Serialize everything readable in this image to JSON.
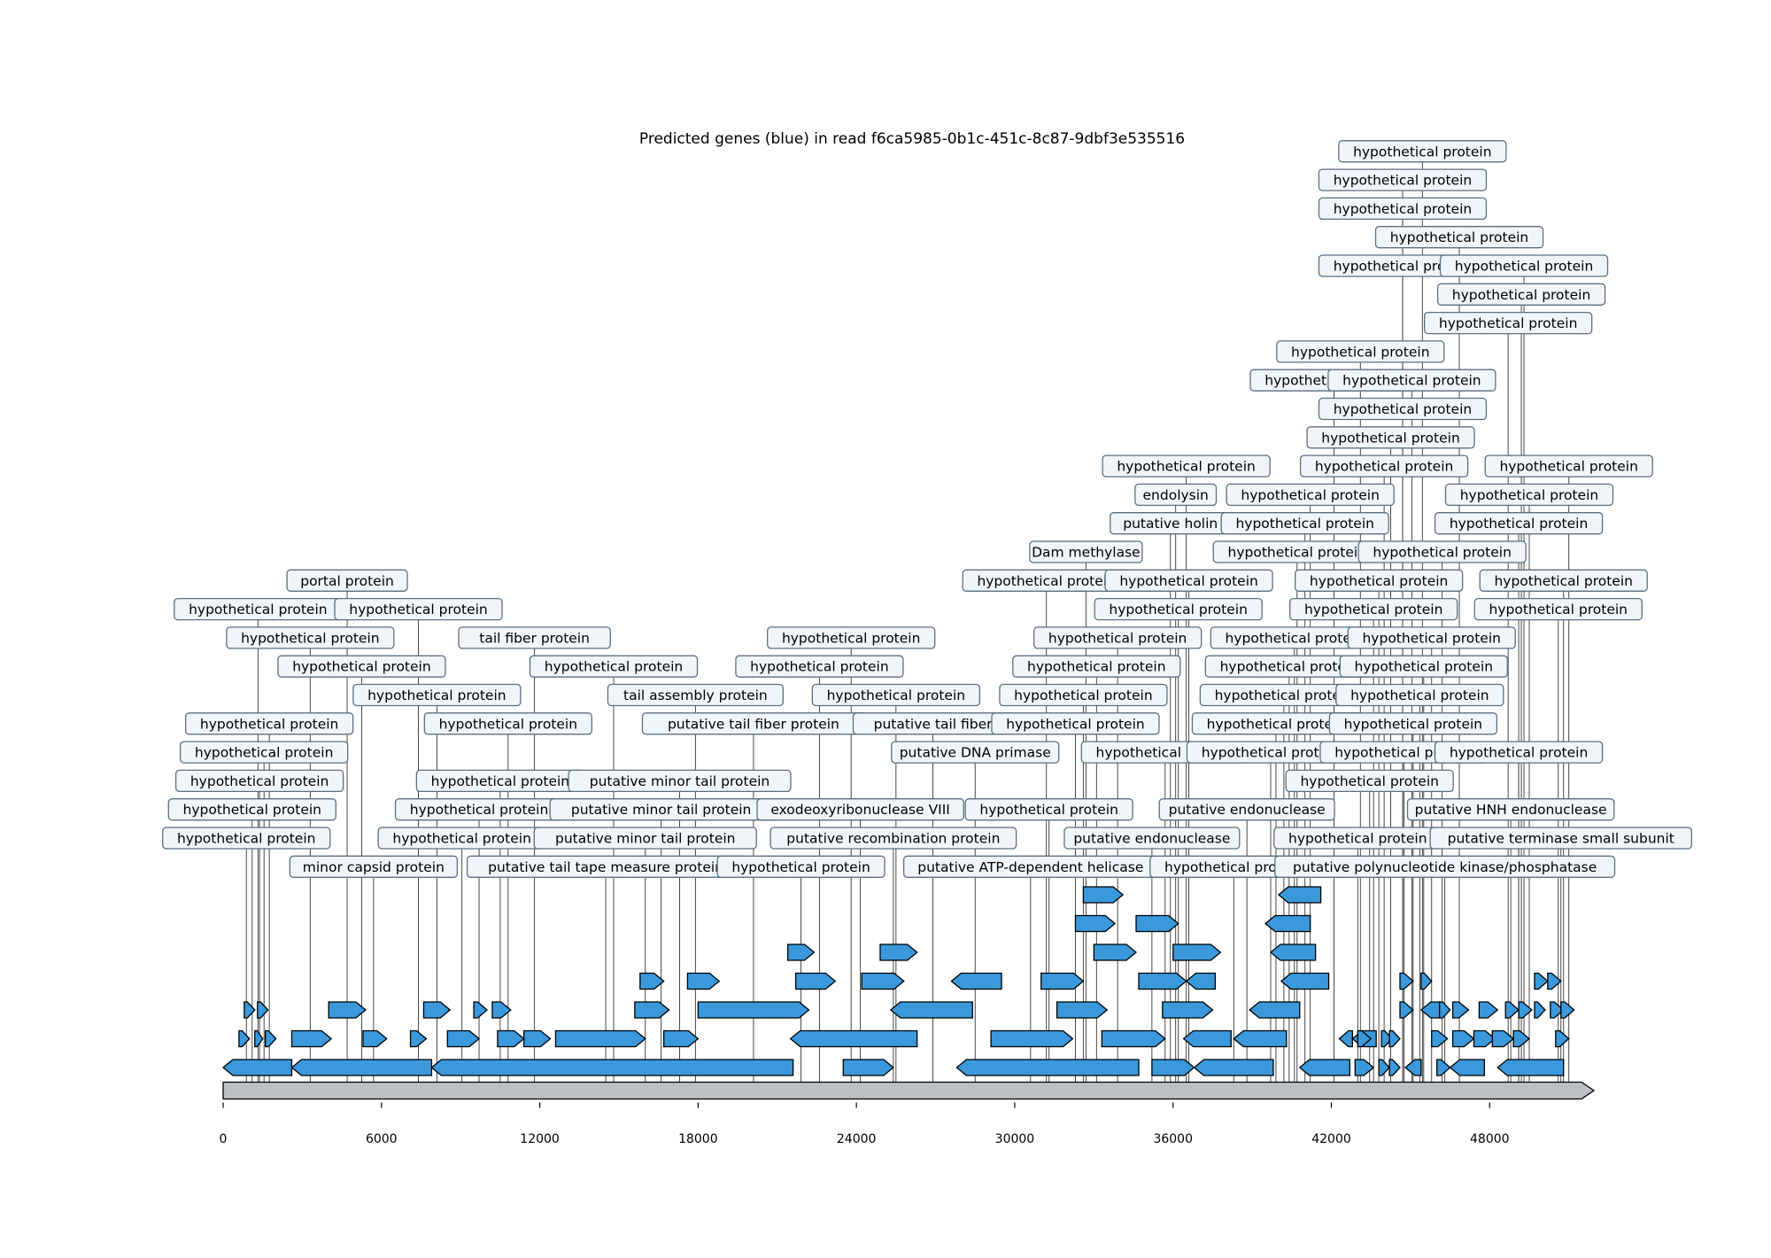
{
  "title": "Predicted genes (blue) in read f6ca5985-0b1c-451c-8c87-9dbf3e535516",
  "chart_data": {
    "type": "gene_map",
    "title": "Predicted genes (blue) in read f6ca5985-0b1c-451c-8c87-9dbf3e535516",
    "xlim": [
      0,
      51950
    ],
    "xticks": [
      0,
      6000,
      12000,
      18000,
      24000,
      30000,
      36000,
      42000,
      48000
    ],
    "tick_labels": [
      "0",
      "6000",
      "12000",
      "18000",
      "24000",
      "30000",
      "36000",
      "42000",
      "48000"
    ],
    "colors": {
      "gene": "#3a98db",
      "genome": "#bdc0c3",
      "label_box": "#f0f5fa"
    },
    "annotations": [
      {
        "label": "hypothetical protein",
        "x": 880,
        "level": 0
      },
      {
        "label": "hypothetical protein",
        "x": 1100,
        "level": 1
      },
      {
        "label": "hypothetical protein",
        "x": 1380,
        "level": 2
      },
      {
        "label": "hypothetical protein",
        "x": 1550,
        "level": 3
      },
      {
        "label": "hypothetical protein",
        "x": 1750,
        "level": 4
      },
      {
        "label": "hypothetical protein",
        "x": 1320,
        "level": 8
      },
      {
        "label": "hypothetical protein",
        "x": 3300,
        "level": 7
      },
      {
        "label": "minor capsid protein",
        "x": 5700,
        "level": -1
      },
      {
        "label": "hypothetical protein",
        "x": 5250,
        "level": 6
      },
      {
        "label": "portal protein",
        "x": 4700,
        "level": 9
      },
      {
        "label": "hypothetical protein",
        "x": 7400,
        "level": 8
      },
      {
        "label": "hypothetical protein",
        "x": 8100,
        "level": 5
      },
      {
        "label": "hypothetical protein",
        "x": 9050,
        "level": 0
      },
      {
        "label": "hypothetical protein",
        "x": 9700,
        "level": 1
      },
      {
        "label": "hypothetical protein",
        "x": 10500,
        "level": 2
      },
      {
        "label": "hypothetical protein",
        "x": 10800,
        "level": 4
      },
      {
        "label": "tail fiber protein",
        "x": 11800,
        "level": 7
      },
      {
        "label": "putative tail tape measure protein",
        "x": 14500,
        "level": -1
      },
      {
        "label": "hypothetical protein",
        "x": 14800,
        "level": 6
      },
      {
        "label": "putative minor tail protein",
        "x": 16000,
        "level": 0
      },
      {
        "label": "putative minor tail protein",
        "x": 16600,
        "level": 1
      },
      {
        "label": "putative minor tail protein",
        "x": 17300,
        "level": 2
      },
      {
        "label": "tail assembly protein",
        "x": 17900,
        "level": 5
      },
      {
        "label": "putative tail fiber protein",
        "x": 20100,
        "level": 4
      },
      {
        "label": "hypothetical protein",
        "x": 21900,
        "level": -1
      },
      {
        "label": "exodeoxyribonuclease VIII",
        "x": 24150,
        "level": 1
      },
      {
        "label": "putative recombination protein",
        "x": 25400,
        "level": 0
      },
      {
        "label": "hypothetical protein",
        "x": 22600,
        "level": 6
      },
      {
        "label": "hypothetical protein",
        "x": 23800,
        "level": 7
      },
      {
        "label": "hypothetical protein",
        "x": 25500,
        "level": 5
      },
      {
        "label": "putative tail fiber",
        "x": 26900,
        "level": 4
      },
      {
        "label": "putative DNA primase",
        "x": 28500,
        "level": 3
      },
      {
        "label": "putative ATP-dependent helicase",
        "x": 30600,
        "level": -1
      },
      {
        "label": "hypothetical protein",
        "x": 31300,
        "level": 1
      },
      {
        "label": "hypothetical protein",
        "x": 32300,
        "level": 4
      },
      {
        "label": "hypothetical protein",
        "x": 32600,
        "level": 5
      },
      {
        "label": "hypothetical protein",
        "x": 33100,
        "level": 6
      },
      {
        "label": "hypothetical protein",
        "x": 33900,
        "level": 7
      },
      {
        "label": "putative endonuclease",
        "x": 35200,
        "level": 0
      },
      {
        "label": "hypothetical protein",
        "x": 35700,
        "level": 3
      },
      {
        "label": "hypothetical protein",
        "x": 31200,
        "level": 9
      },
      {
        "label": "Dam methylase",
        "x": 32700,
        "level": 10
      },
      {
        "label": "hypothetical protein",
        "x": 36200,
        "level": 8
      },
      {
        "label": "hypothetical protein",
        "x": 36600,
        "level": 9
      },
      {
        "label": "putative holin",
        "x": 35900,
        "level": 11
      },
      {
        "label": "endolysin",
        "x": 36100,
        "level": 12
      },
      {
        "label": "hypothetical protein",
        "x": 36500,
        "level": 13
      },
      {
        "label": "hypothetical protein",
        "x": 38300,
        "level": -1
      },
      {
        "label": "putative endonuclease",
        "x": 38800,
        "level": 1
      },
      {
        "label": "hypothetical protein",
        "x": 39700,
        "level": 3
      },
      {
        "label": "hypothetical protein",
        "x": 39900,
        "level": 4
      },
      {
        "label": "hypothetical protein",
        "x": 40200,
        "level": 5
      },
      {
        "label": "hypothetical protein",
        "x": 40400,
        "level": 6
      },
      {
        "label": "hypothetical protein",
        "x": 40600,
        "level": 7
      },
      {
        "label": "hypothetical protein",
        "x": 40700,
        "level": 10
      },
      {
        "label": "hypothetical protein",
        "x": 41000,
        "level": 11
      },
      {
        "label": "hypothetical protein",
        "x": 41200,
        "level": 12
      },
      {
        "label": "hypothetical protein",
        "x": 42100,
        "level": 16
      },
      {
        "label": "hypothetical protein",
        "x": 43100,
        "level": 17
      },
      {
        "label": "putative polynucleotide kinase/phosphatase",
        "x": 46300,
        "level": -1
      },
      {
        "label": "hypothetical protein",
        "x": 43000,
        "level": 0
      },
      {
        "label": "hypothetical protein",
        "x": 43450,
        "level": 2
      },
      {
        "label": "hypothetical protein",
        "x": 43600,
        "level": 8
      },
      {
        "label": "hypothetical protein",
        "x": 43800,
        "level": 9
      },
      {
        "label": "hypothetical protein",
        "x": 44000,
        "level": 13
      },
      {
        "label": "hypothetical protein",
        "x": 44250,
        "level": 14
      },
      {
        "label": "hypothetical protein",
        "x": 44700,
        "level": 15
      },
      {
        "label": "hypothetical protein",
        "x": 45050,
        "level": 16
      },
      {
        "label": "hypothetical protein",
        "x": 44700,
        "level": 20
      },
      {
        "label": "hypothetical protein",
        "x": 44700,
        "level": 22
      },
      {
        "label": "hypothetical protein",
        "x": 44700,
        "level": 23
      },
      {
        "label": "hypothetical protein",
        "x": 45450,
        "level": 24
      },
      {
        "label": "hypothetical protein",
        "x": 46850,
        "level": 21
      },
      {
        "label": "hypothetical protein",
        "x": 44750,
        "level": 3
      },
      {
        "label": "hypothetical protein",
        "x": 45100,
        "level": 4
      },
      {
        "label": "hypothetical protein",
        "x": 45350,
        "level": 5
      },
      {
        "label": "hypothetical protein",
        "x": 45500,
        "level": 6
      },
      {
        "label": "hypothetical protein",
        "x": 45800,
        "level": 7
      },
      {
        "label": "hypothetical protein",
        "x": 46200,
        "level": 10
      },
      {
        "label": "putative HNH endonuclease",
        "x": 48800,
        "level": 1
      },
      {
        "label": "putative terminase small subunit",
        "x": 50700,
        "level": 0
      },
      {
        "label": "hypothetical protein",
        "x": 49100,
        "level": 3
      },
      {
        "label": "hypothetical protein",
        "x": 50600,
        "level": 8
      },
      {
        "label": "hypothetical protein",
        "x": 50800,
        "level": 9
      },
      {
        "label": "hypothetical protein",
        "x": 49100,
        "level": 11
      },
      {
        "label": "hypothetical protein",
        "x": 49500,
        "level": 12
      },
      {
        "label": "hypothetical protein",
        "x": 51000,
        "level": 13
      },
      {
        "label": "hypothetical protein",
        "x": 48700,
        "level": 18
      },
      {
        "label": "hypothetical protein",
        "x": 49200,
        "level": 19
      },
      {
        "label": "hypothetical protein",
        "x": 49300,
        "level": 20
      }
    ],
    "genes": [
      {
        "start": 0,
        "end": 2600,
        "strand": -1,
        "track": 0
      },
      {
        "start": 2600,
        "end": 7900,
        "strand": -1,
        "track": 0
      },
      {
        "start": 7900,
        "end": 21600,
        "strand": -1,
        "track": 0
      },
      {
        "start": 23500,
        "end": 25400,
        "strand": 1,
        "track": 0
      },
      {
        "start": 27800,
        "end": 34700,
        "strand": -1,
        "track": 0
      },
      {
        "start": 35200,
        "end": 36800,
        "strand": 1,
        "track": 0
      },
      {
        "start": 36800,
        "end": 39800,
        "strand": -1,
        "track": 0
      },
      {
        "start": 40800,
        "end": 42700,
        "strand": -1,
        "track": 0
      },
      {
        "start": 42900,
        "end": 43600,
        "strand": 1,
        "track": 0
      },
      {
        "start": 43800,
        "end": 44200,
        "strand": 1,
        "track": 0
      },
      {
        "start": 44200,
        "end": 44600,
        "strand": 1,
        "track": 0
      },
      {
        "start": 44800,
        "end": 45400,
        "strand": -1,
        "track": 0
      },
      {
        "start": 46000,
        "end": 46500,
        "strand": 1,
        "track": 0
      },
      {
        "start": 46500,
        "end": 47800,
        "strand": -1,
        "track": 0
      },
      {
        "start": 48300,
        "end": 50800,
        "strand": -1,
        "track": 0
      },
      {
        "start": 600,
        "end": 1000,
        "strand": 1,
        "track": 1
      },
      {
        "start": 1200,
        "end": 1500,
        "strand": 1,
        "track": 1
      },
      {
        "start": 1600,
        "end": 2000,
        "strand": 1,
        "track": 1
      },
      {
        "start": 2600,
        "end": 4100,
        "strand": 1,
        "track": 1
      },
      {
        "start": 5300,
        "end": 6200,
        "strand": 1,
        "track": 1
      },
      {
        "start": 7100,
        "end": 7700,
        "strand": 1,
        "track": 1
      },
      {
        "start": 8500,
        "end": 9700,
        "strand": 1,
        "track": 1
      },
      {
        "start": 10400,
        "end": 11400,
        "strand": 1,
        "track": 1
      },
      {
        "start": 11400,
        "end": 12400,
        "strand": 1,
        "track": 1
      },
      {
        "start": 12600,
        "end": 16000,
        "strand": 1,
        "track": 1
      },
      {
        "start": 16700,
        "end": 18000,
        "strand": 1,
        "track": 1
      },
      {
        "start": 21500,
        "end": 26300,
        "strand": -1,
        "track": 1
      },
      {
        "start": 29100,
        "end": 32200,
        "strand": 1,
        "track": 1
      },
      {
        "start": 33300,
        "end": 35700,
        "strand": 1,
        "track": 1
      },
      {
        "start": 36400,
        "end": 38200,
        "strand": -1,
        "track": 1
      },
      {
        "start": 38300,
        "end": 40300,
        "strand": -1,
        "track": 1
      },
      {
        "start": 42300,
        "end": 42800,
        "strand": -1,
        "track": 1
      },
      {
        "start": 42800,
        "end": 43700,
        "strand": -1,
        "track": 1
      },
      {
        "start": 43000,
        "end": 43500,
        "strand": 1,
        "track": 1
      },
      {
        "start": 43900,
        "end": 44300,
        "strand": 1,
        "track": 1
      },
      {
        "start": 44200,
        "end": 44600,
        "strand": 1,
        "track": 1
      },
      {
        "start": 45800,
        "end": 46400,
        "strand": 1,
        "track": 1
      },
      {
        "start": 46600,
        "end": 47400,
        "strand": 1,
        "track": 1
      },
      {
        "start": 47400,
        "end": 48200,
        "strand": 1,
        "track": 1
      },
      {
        "start": 48100,
        "end": 48900,
        "strand": 1,
        "track": 1
      },
      {
        "start": 48900,
        "end": 49500,
        "strand": 1,
        "track": 1
      },
      {
        "start": 50500,
        "end": 51000,
        "strand": 1,
        "track": 1
      },
      {
        "start": 800,
        "end": 1200,
        "strand": 1,
        "track": 2
      },
      {
        "start": 1300,
        "end": 1700,
        "strand": 1,
        "track": 2
      },
      {
        "start": 4000,
        "end": 5400,
        "strand": 1,
        "track": 2
      },
      {
        "start": 7600,
        "end": 8600,
        "strand": 1,
        "track": 2
      },
      {
        "start": 9500,
        "end": 10000,
        "strand": 1,
        "track": 2
      },
      {
        "start": 10200,
        "end": 10900,
        "strand": 1,
        "track": 2
      },
      {
        "start": 15600,
        "end": 16900,
        "strand": 1,
        "track": 2
      },
      {
        "start": 18000,
        "end": 22200,
        "strand": 1,
        "track": 2
      },
      {
        "start": 25300,
        "end": 28400,
        "strand": -1,
        "track": 2
      },
      {
        "start": 31600,
        "end": 33500,
        "strand": 1,
        "track": 2
      },
      {
        "start": 35600,
        "end": 37500,
        "strand": 1,
        "track": 2
      },
      {
        "start": 38900,
        "end": 40800,
        "strand": -1,
        "track": 2
      },
      {
        "start": 44600,
        "end": 45100,
        "strand": 1,
        "track": 2
      },
      {
        "start": 45400,
        "end": 46100,
        "strand": -1,
        "track": 2
      },
      {
        "start": 46100,
        "end": 46500,
        "strand": 1,
        "track": 2
      },
      {
        "start": 46600,
        "end": 47200,
        "strand": 1,
        "track": 2
      },
      {
        "start": 47600,
        "end": 48300,
        "strand": 1,
        "track": 2
      },
      {
        "start": 48600,
        "end": 49100,
        "strand": 1,
        "track": 2
      },
      {
        "start": 49100,
        "end": 49600,
        "strand": 1,
        "track": 2
      },
      {
        "start": 49700,
        "end": 50100,
        "strand": 1,
        "track": 2
      },
      {
        "start": 50300,
        "end": 50800,
        "strand": 1,
        "track": 2
      },
      {
        "start": 50700,
        "end": 51200,
        "strand": 1,
        "track": 2
      },
      {
        "start": 15800,
        "end": 16700,
        "strand": 1,
        "track": 3
      },
      {
        "start": 17600,
        "end": 18800,
        "strand": 1,
        "track": 3
      },
      {
        "start": 21700,
        "end": 23200,
        "strand": 1,
        "track": 3
      },
      {
        "start": 24200,
        "end": 25800,
        "strand": 1,
        "track": 3
      },
      {
        "start": 27600,
        "end": 29500,
        "strand": -1,
        "track": 3
      },
      {
        "start": 31000,
        "end": 32600,
        "strand": 1,
        "track": 3
      },
      {
        "start": 34700,
        "end": 36500,
        "strand": 1,
        "track": 3
      },
      {
        "start": 36500,
        "end": 37600,
        "strand": -1,
        "track": 3
      },
      {
        "start": 40100,
        "end": 41900,
        "strand": -1,
        "track": 3
      },
      {
        "start": 44600,
        "end": 45100,
        "strand": 1,
        "track": 3
      },
      {
        "start": 45400,
        "end": 45800,
        "strand": 1,
        "track": 3
      },
      {
        "start": 49700,
        "end": 50200,
        "strand": 1,
        "track": 3
      },
      {
        "start": 50200,
        "end": 50700,
        "strand": 1,
        "track": 3
      },
      {
        "start": 21400,
        "end": 22400,
        "strand": 1,
        "track": 4
      },
      {
        "start": 24900,
        "end": 26300,
        "strand": 1,
        "track": 4
      },
      {
        "start": 33000,
        "end": 34600,
        "strand": 1,
        "track": 4
      },
      {
        "start": 36000,
        "end": 37800,
        "strand": 1,
        "track": 4
      },
      {
        "start": 39700,
        "end": 41400,
        "strand": -1,
        "track": 4
      },
      {
        "start": 32300,
        "end": 33800,
        "strand": 1,
        "track": 5
      },
      {
        "start": 34600,
        "end": 36200,
        "strand": 1,
        "track": 5
      },
      {
        "start": 39500,
        "end": 41200,
        "strand": -1,
        "track": 5
      },
      {
        "start": 32600,
        "end": 34100,
        "strand": 1,
        "track": 6
      },
      {
        "start": 40000,
        "end": 41600,
        "strand": -1,
        "track": 6
      },
      {
        "start": 39800,
        "end": 41500,
        "strand": -1,
        "track": 7
      }
    ]
  }
}
